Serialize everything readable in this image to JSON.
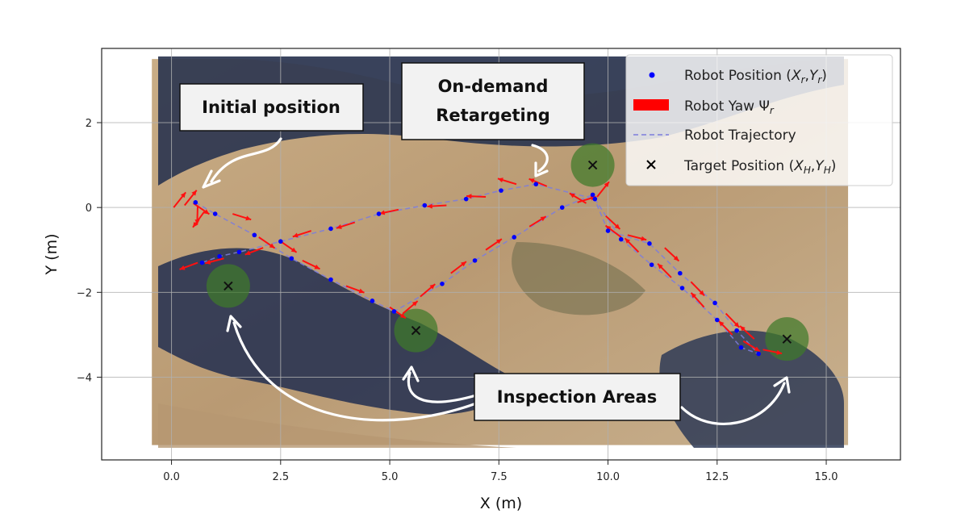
{
  "chart_data": {
    "type": "scatter",
    "xlabel": "X (m)",
    "ylabel": "Y (m)",
    "xlim": [
      -1.6,
      16.7
    ],
    "ylim": [
      -5.95,
      3.75
    ],
    "xticks": [
      "0.0",
      "2.5",
      "5.0",
      "7.5",
      "10.0",
      "12.5",
      "15.0"
    ],
    "xtick_values": [
      0,
      2.5,
      5,
      7.5,
      10,
      12.5,
      15
    ],
    "yticks": [
      "2",
      "0",
      "−2",
      "−4"
    ],
    "ytick_values": [
      2,
      0,
      -2,
      -4
    ],
    "grid": true,
    "background_image_extent": {
      "x": [
        -0.45,
        15.5
      ],
      "y": [
        -5.6,
        3.5
      ]
    },
    "legend": {
      "placement": "top-right",
      "entries": [
        {
          "label": "Robot Position (X_r,Y_r)",
          "marker": "dot",
          "color": "#0000ff"
        },
        {
          "label": "Robot Yaw Ψ_r",
          "marker": "bar",
          "color": "#ff0000"
        },
        {
          "label": "Robot Trajectory",
          "marker": "dashed-line",
          "color": "#8080e0"
        },
        {
          "label": "Target Position (X_H,Y_H)",
          "marker": "x",
          "color": "#000000"
        }
      ]
    },
    "trajectory": [
      [
        0.55,
        0.12
      ],
      [
        1.0,
        -0.15
      ],
      [
        1.9,
        -0.65
      ],
      [
        2.75,
        -1.2
      ],
      [
        3.65,
        -1.7
      ],
      [
        4.6,
        -2.2
      ],
      [
        5.1,
        -2.45
      ],
      [
        6.2,
        -1.8
      ],
      [
        6.95,
        -1.25
      ],
      [
        7.85,
        -0.7
      ],
      [
        8.95,
        0.0
      ],
      [
        9.65,
        0.3
      ],
      [
        10.0,
        -0.55
      ],
      [
        10.95,
        -0.85
      ],
      [
        11.65,
        -1.55
      ],
      [
        12.45,
        -2.25
      ],
      [
        12.95,
        -2.9
      ],
      [
        13.45,
        -3.45
      ],
      [
        13.05,
        -3.3
      ],
      [
        12.5,
        -2.65
      ],
      [
        11.7,
        -1.9
      ],
      [
        11.0,
        -1.35
      ],
      [
        10.3,
        -0.75
      ],
      [
        9.7,
        0.2
      ],
      [
        8.35,
        0.55
      ],
      [
        7.55,
        0.4
      ],
      [
        6.75,
        0.2
      ],
      [
        5.8,
        0.05
      ],
      [
        4.75,
        -0.15
      ],
      [
        3.65,
        -0.5
      ],
      [
        2.5,
        -0.8
      ],
      [
        1.55,
        -1.05
      ],
      [
        1.1,
        -1.15
      ],
      [
        0.7,
        -1.3
      ]
    ],
    "yaw_arrows": [
      [
        0.05,
        0.0,
        0.9
      ],
      [
        0.3,
        0.05,
        0.9
      ],
      [
        0.5,
        0.1,
        -0.6
      ],
      [
        0.6,
        0.05,
        -1.6
      ],
      [
        0.75,
        -0.1,
        -2.2
      ],
      [
        1.4,
        -0.15,
        -0.3
      ],
      [
        2.5,
        -0.8,
        -0.6
      ],
      [
        2.0,
        -0.7,
        -0.6
      ],
      [
        3.0,
        -1.25,
        -0.45
      ],
      [
        4.0,
        -1.85,
        -0.35
      ],
      [
        5.0,
        -2.35,
        -0.6
      ],
      [
        5.3,
        -2.5,
        0.7
      ],
      [
        5.7,
        -2.1,
        0.7
      ],
      [
        6.4,
        -1.55,
        0.65
      ],
      [
        7.2,
        -1.0,
        0.6
      ],
      [
        8.2,
        -0.45,
        0.55
      ],
      [
        9.3,
        0.12,
        0.3
      ],
      [
        9.75,
        0.25,
        0.9
      ],
      [
        9.95,
        -0.2,
        -0.75
      ],
      [
        10.45,
        -0.65,
        -0.25
      ],
      [
        11.3,
        -0.95,
        -0.75
      ],
      [
        11.9,
        -1.75,
        -0.8
      ],
      [
        12.7,
        -2.5,
        -0.8
      ],
      [
        13.1,
        -3.15,
        -0.55
      ],
      [
        13.55,
        -3.35,
        -0.2
      ],
      [
        13.35,
        -3.1,
        2.4
      ],
      [
        12.85,
        -3.0,
        2.35
      ],
      [
        12.2,
        -2.35,
        2.3
      ],
      [
        11.45,
        -1.65,
        2.35
      ],
      [
        10.7,
        -1.05,
        2.35
      ],
      [
        10.3,
        -0.7,
        2.5
      ],
      [
        9.5,
        0.1,
        2.6
      ],
      [
        8.6,
        0.5,
        2.75
      ],
      [
        7.9,
        0.55,
        2.85
      ],
      [
        7.2,
        0.25,
        3.1
      ],
      [
        6.3,
        0.05,
        3.2
      ],
      [
        5.2,
        -0.05,
        3.35
      ],
      [
        4.2,
        -0.35,
        3.45
      ],
      [
        3.2,
        -0.55,
        3.45
      ],
      [
        2.1,
        -0.95,
        3.5
      ],
      [
        1.2,
        -1.2,
        3.4
      ],
      [
        0.6,
        -1.3,
        3.5
      ]
    ],
    "targets": [
      {
        "x": 1.3,
        "y": -1.85
      },
      {
        "x": 5.6,
        "y": -2.9
      },
      {
        "x": 9.65,
        "y": 1.0
      },
      {
        "x": 14.1,
        "y": -3.1
      }
    ],
    "annotations": [
      {
        "text": "Initial position"
      },
      {
        "text": "On-demand"
      },
      {
        "text": "Retargeting"
      },
      {
        "text": "Inspection Areas"
      }
    ]
  }
}
